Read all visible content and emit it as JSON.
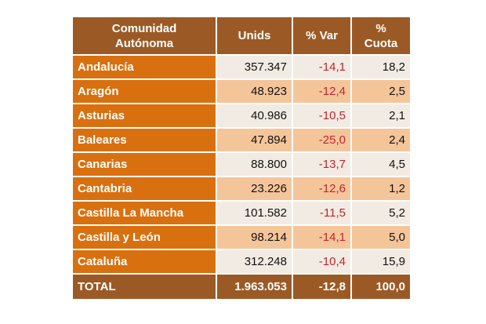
{
  "table": {
    "headers": [
      "Comunidad\nAutónoma",
      "Unids",
      "% Var",
      "%\nCuota"
    ],
    "rows": [
      {
        "name": "Andalucía",
        "unids": "357.347",
        "var": "-14,1",
        "cuota": "18,2"
      },
      {
        "name": "Aragón",
        "unids": "48.923",
        "var": "-12,4",
        "cuota": "2,5"
      },
      {
        "name": "Asturias",
        "unids": "40.986",
        "var": "-10,5",
        "cuota": "2,1"
      },
      {
        "name": "Baleares",
        "unids": "47.894",
        "var": "-25,0",
        "cuota": "2,4"
      },
      {
        "name": "Canarias",
        "unids": "88.800",
        "var": "-13,7",
        "cuota": "4,5"
      },
      {
        "name": "Cantabria",
        "unids": "23.226",
        "var": "-12,6",
        "cuota": "1,2"
      },
      {
        "name": "Castilla La Mancha",
        "unids": "101.582",
        "var": "-11,5",
        "cuota": "5,2"
      },
      {
        "name": "Castilla y León",
        "unids": "98.214",
        "var": "-14,1",
        "cuota": "5,0"
      },
      {
        "name": "Cataluña",
        "unids": "312.248",
        "var": "-10,4",
        "cuota": "15,9"
      }
    ],
    "total": {
      "name": "TOTAL",
      "unids": "1.963.053",
      "var": "-12,8",
      "cuota": "100,0"
    }
  },
  "colors": {
    "header_bg": "#9b5a25",
    "name_bg": "#d9700f",
    "row_light": "#f2ebe3",
    "row_dark": "#f5c59a",
    "negative": "#c0262d"
  }
}
